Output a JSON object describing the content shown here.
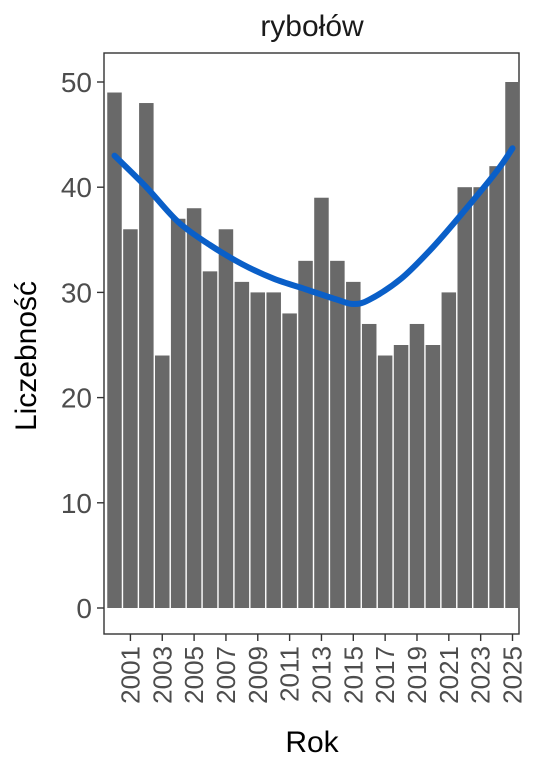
{
  "chart_data": {
    "type": "bar",
    "title": "rybołów",
    "xlabel": "Rok",
    "ylabel": "Liczebność",
    "x": [
      2000,
      2001,
      2002,
      2003,
      2004,
      2005,
      2006,
      2007,
      2008,
      2009,
      2010,
      2011,
      2012,
      2013,
      2014,
      2015,
      2016,
      2017,
      2018,
      2019,
      2020,
      2021,
      2022,
      2023,
      2024,
      2025
    ],
    "values": [
      49,
      36,
      48,
      24,
      37,
      38,
      32,
      36,
      31,
      30,
      30,
      28,
      33,
      39,
      33,
      31,
      27,
      24,
      25,
      27,
      25,
      30,
      40,
      40,
      42,
      50
    ],
    "x_tick_labels": [
      "2001",
      "2003",
      "2005",
      "2007",
      "2009",
      "2011",
      "2013",
      "2015",
      "2017",
      "2019",
      "2021",
      "2023",
      "2025"
    ],
    "y_tick_labels": [
      "0",
      "10",
      "20",
      "30",
      "40",
      "50"
    ],
    "ylim": [
      0,
      52.5
    ],
    "trend": {
      "x": [
        2000,
        2002,
        2004,
        2006,
        2008,
        2010,
        2012,
        2014,
        2015,
        2016,
        2018,
        2020,
        2022,
        2024,
        2025
      ],
      "y": [
        43,
        40,
        36.7,
        34.5,
        32.7,
        31.3,
        30.3,
        29.3,
        28.9,
        29.3,
        31.3,
        34.3,
        37.8,
        41.5,
        43.7
      ]
    },
    "grid": false,
    "colors": {
      "bar": "#696969",
      "trend": "#0a5fc8",
      "axis": "#333333",
      "tick_text": "#4d4d4d"
    }
  }
}
